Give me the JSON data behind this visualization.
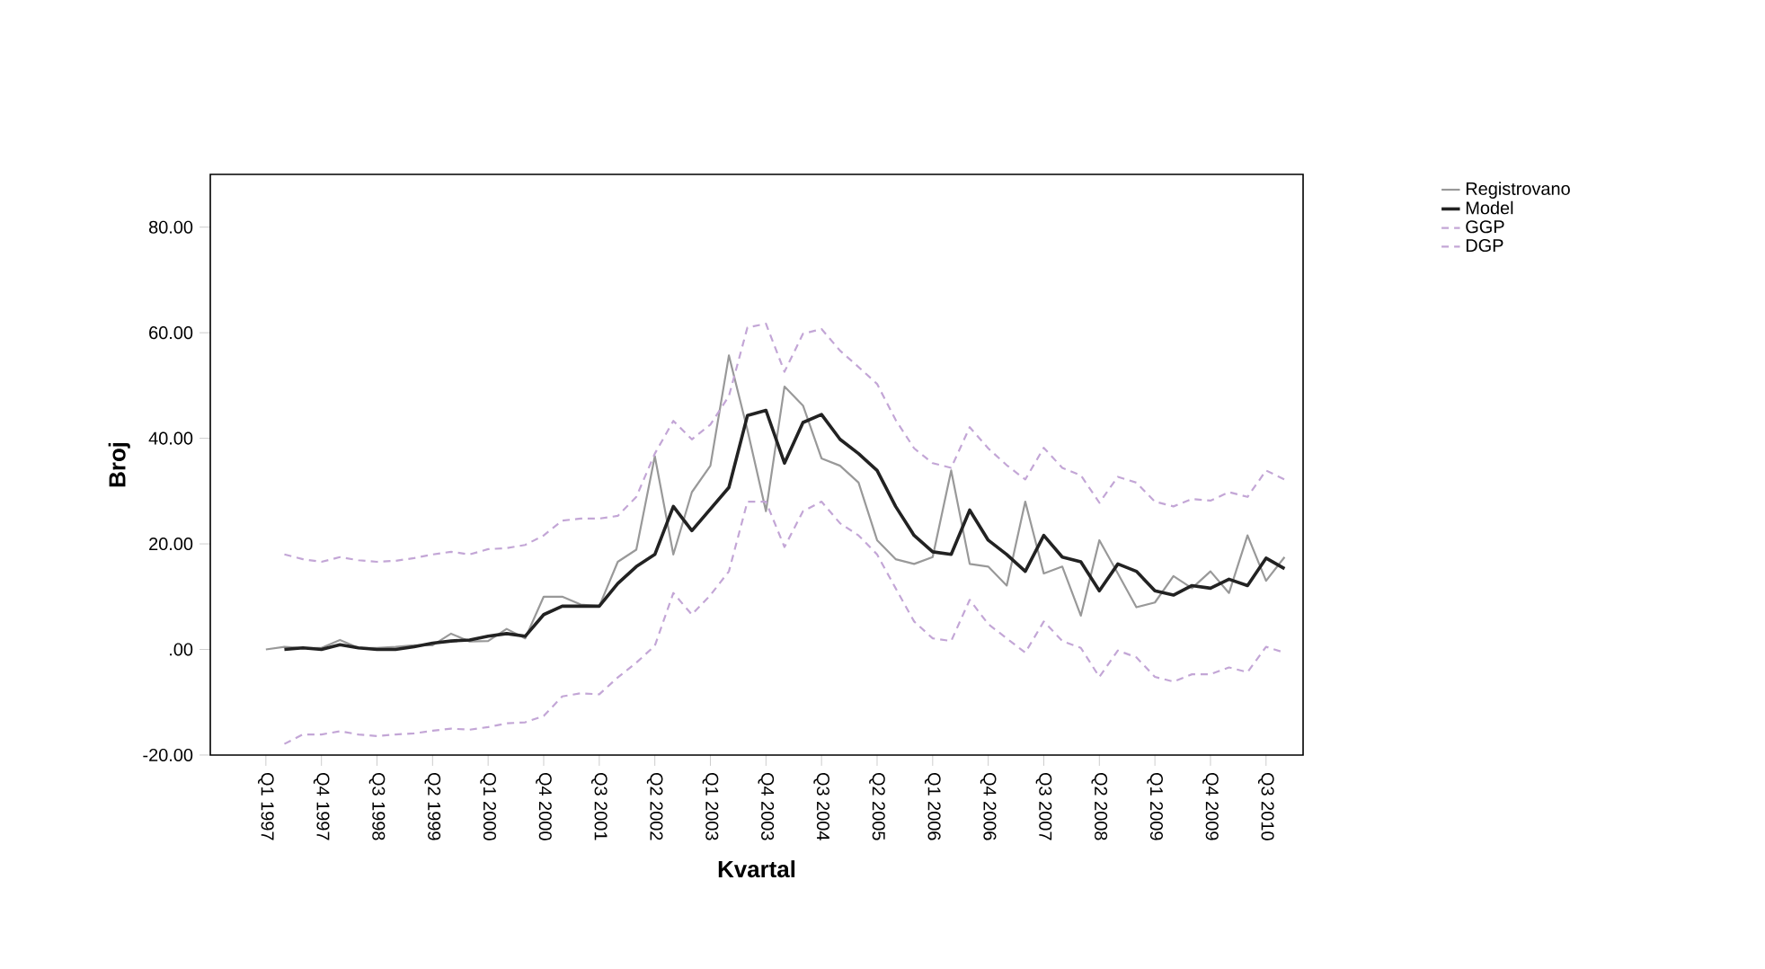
{
  "chart_data": {
    "type": "line",
    "xlabel": "Kvartal",
    "ylabel": "Broj",
    "categories": [
      "Q1 1997",
      null,
      null,
      "Q4 1997",
      null,
      null,
      "Q3 1998",
      null,
      null,
      "Q2 1999",
      null,
      null,
      "Q1 2000",
      null,
      null,
      "Q4 2000",
      null,
      null,
      "Q3 2001",
      null,
      null,
      "Q2 2002",
      null,
      null,
      "Q1 2003",
      null,
      null,
      "Q4 2003",
      null,
      null,
      "Q3 2004",
      null,
      null,
      "Q2 2005",
      null,
      null,
      "Q1 2006",
      null,
      null,
      "Q4 2006",
      null,
      null,
      "Q3 2007",
      null,
      null,
      "Q2 2008",
      null,
      null,
      "Q1 2009",
      null,
      null,
      "Q4 2009",
      null,
      null,
      "Q3 2010",
      null
    ],
    "ylim": [
      -20,
      90
    ],
    "yticks": [
      {
        "value": -20,
        "label": "-20.00"
      },
      {
        "value": 0,
        "label": ".00"
      },
      {
        "value": 20,
        "label": "20.00"
      },
      {
        "value": 40,
        "label": "40.00"
      },
      {
        "value": 60,
        "label": "60.00"
      },
      {
        "value": 80,
        "label": "80.00"
      }
    ],
    "legend": "top right",
    "grid": false,
    "marker": "none",
    "series": [
      {
        "name": "Registrovano",
        "color": "#999999",
        "line_style": "solid",
        "values": [
          0,
          0.5,
          0.3,
          0.3,
          1.8,
          0.3,
          0.3,
          0.5,
          0.8,
          0.8,
          3.0,
          1.5,
          1.6,
          3.9,
          2.1,
          10,
          10,
          8.5,
          8.2,
          16.6,
          18.9,
          36.6,
          18,
          29.8,
          34.8,
          55.7,
          41.6,
          26.2,
          49.8,
          46.2,
          36.2,
          34.8,
          31.6,
          20.7,
          17.1,
          16.2,
          17.5,
          33.9,
          16.2,
          15.7,
          12.1,
          28,
          14.4,
          15.7,
          6.4,
          20.7,
          14.4,
          8,
          8.9,
          13.9,
          11.6,
          14.8,
          10.7,
          21.6,
          13,
          17.5
        ]
      },
      {
        "name": "Model",
        "color": "#222222",
        "line_style": "solid",
        "values": [
          null,
          0,
          0.3,
          0,
          0.9,
          0.3,
          0,
          0,
          0.5,
          1.2,
          1.6,
          1.8,
          2.5,
          3,
          2.5,
          6.6,
          8.2,
          8.2,
          8.2,
          12.5,
          15.7,
          18,
          27.1,
          22.5,
          26.6,
          30.7,
          44.3,
          45.3,
          35.3,
          43,
          44.5,
          39.8,
          37.1,
          33.9,
          27.1,
          21.6,
          18.5,
          18,
          26.4,
          20.7,
          18,
          14.8,
          21.6,
          17.5,
          16.6,
          11.1,
          16.2,
          14.8,
          11.1,
          10.3,
          12.1,
          11.6,
          13.3,
          12.1,
          17.3,
          15.3
        ]
      },
      {
        "name": "GGP",
        "color": "#c3a6d6",
        "line_style": "dashed",
        "values": [
          null,
          18,
          17.1,
          16.6,
          17.5,
          16.9,
          16.6,
          16.8,
          17.3,
          18,
          18.5,
          18,
          19,
          19.2,
          19.8,
          21.6,
          24.4,
          24.8,
          24.8,
          25.3,
          28.9,
          37.1,
          43.3,
          39.8,
          42.6,
          48,
          61,
          61.7,
          52.6,
          59.8,
          60.7,
          56.6,
          53.5,
          50.3,
          43.5,
          38.1,
          35.3,
          34.4,
          42.1,
          38.1,
          34.9,
          32.2,
          38.2,
          34.4,
          33,
          27.8,
          32.7,
          31.6,
          28,
          27.1,
          28.5,
          28.2,
          29.8,
          28.9,
          33.9,
          32.2
        ]
      },
      {
        "name": "DGP",
        "color": "#c3a6d6",
        "line_style": "dashed",
        "values": [
          null,
          -17.9,
          -16.1,
          -16.1,
          -15.5,
          -16.1,
          -16.4,
          -16.1,
          -15.9,
          -15.4,
          -15,
          -15.2,
          -14.7,
          -14,
          -13.8,
          -12.6,
          -8.9,
          -8.3,
          -8.5,
          -5.3,
          -2.5,
          0.7,
          10.7,
          6.6,
          10.3,
          14.8,
          28,
          28,
          19.4,
          26.2,
          28,
          23.9,
          21.6,
          18,
          11.6,
          5.3,
          2.1,
          1.6,
          9.4,
          4.8,
          2.1,
          -0.6,
          5.3,
          1.6,
          0.3,
          -5.2,
          -0.2,
          -1.5,
          -5.2,
          -6.1,
          -4.7,
          -4.7,
          -3.4,
          -4.3,
          0.5,
          -0.6
        ]
      }
    ]
  }
}
